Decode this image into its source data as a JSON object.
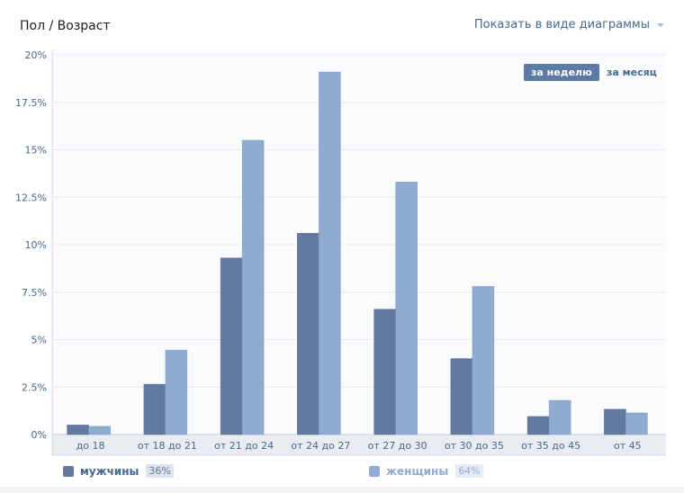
{
  "header": {
    "title": "Пол / Возраст",
    "view_toggle": "Показать в виде диаграммы"
  },
  "period": {
    "week": "за неделю",
    "month": "за месяц",
    "active": "week"
  },
  "legend": [
    {
      "label": "мужчины",
      "percent": "36%",
      "color": "#64799f"
    },
    {
      "label": "женщины",
      "percent": "64%",
      "color": "#8fabd0"
    }
  ],
  "chart_data": {
    "type": "bar",
    "categories": [
      "до 18",
      "от 18 до 21",
      "от 21 до 24",
      "от 24 до 27",
      "от 27 до 30",
      "от 30 до 35",
      "от 35 до 45",
      "от 45"
    ],
    "series": [
      {
        "name": "мужчины",
        "color": "#64799f",
        "values": [
          0.5,
          2.65,
          9.3,
          10.6,
          6.6,
          4.0,
          0.95,
          1.33
        ]
      },
      {
        "name": "женщины",
        "color": "#8fabd0",
        "values": [
          0.43,
          4.45,
          15.5,
          19.1,
          13.3,
          7.8,
          1.8,
          1.14
        ]
      }
    ],
    "ylim": [
      0,
      20
    ],
    "yticks": [
      "0%",
      "2.5%",
      "5%",
      "7.5%",
      "10%",
      "12.5%",
      "15%",
      "17.5%",
      "20%"
    ],
    "grid": true,
    "legend_placement": "bottom"
  }
}
